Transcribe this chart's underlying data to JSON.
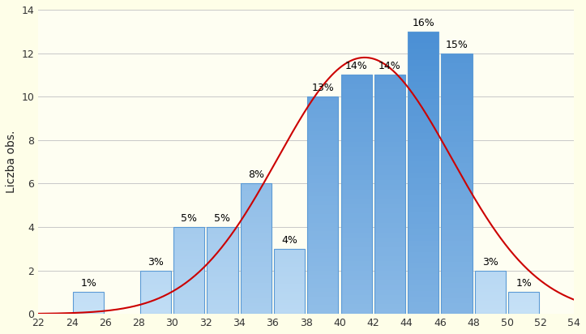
{
  "bar_centers": [
    25,
    27,
    29,
    31,
    33,
    35,
    37,
    39,
    41,
    43,
    45,
    47,
    49,
    51
  ],
  "bar_heights": [
    1,
    0,
    2,
    4,
    4,
    6,
    3,
    10,
    11,
    11,
    13,
    12,
    2,
    1
  ],
  "bar_pcts": [
    "1%",
    "",
    "3%",
    "5%",
    "5%",
    "8%",
    "4%",
    "13%",
    "14%",
    "14%",
    "16%",
    "15%",
    "3%",
    "1%"
  ],
  "bar_width": 1.85,
  "bar_color_light": "#cce5f8",
  "bar_color_dark": "#4a8fd4",
  "bar_edge_color": "#5b9ad5",
  "curve_color": "#cc0000",
  "curve_mean": 41.5,
  "curve_std": 5.2,
  "curve_scale": 11.8,
  "background_color": "#fefee8",
  "plot_bg_color": "#fefef2",
  "ylabel": "Liczba obs.",
  "ylim": [
    0,
    14
  ],
  "xlim": [
    22,
    54
  ],
  "xticks": [
    22,
    24,
    26,
    28,
    30,
    32,
    34,
    36,
    38,
    40,
    42,
    44,
    46,
    48,
    50,
    52,
    54
  ],
  "yticks": [
    0,
    2,
    4,
    6,
    8,
    10,
    12,
    14
  ],
  "grid_color": "#c8c8c8",
  "pct_fontsize": 9,
  "label_fontsize": 10,
  "tick_fontsize": 9
}
